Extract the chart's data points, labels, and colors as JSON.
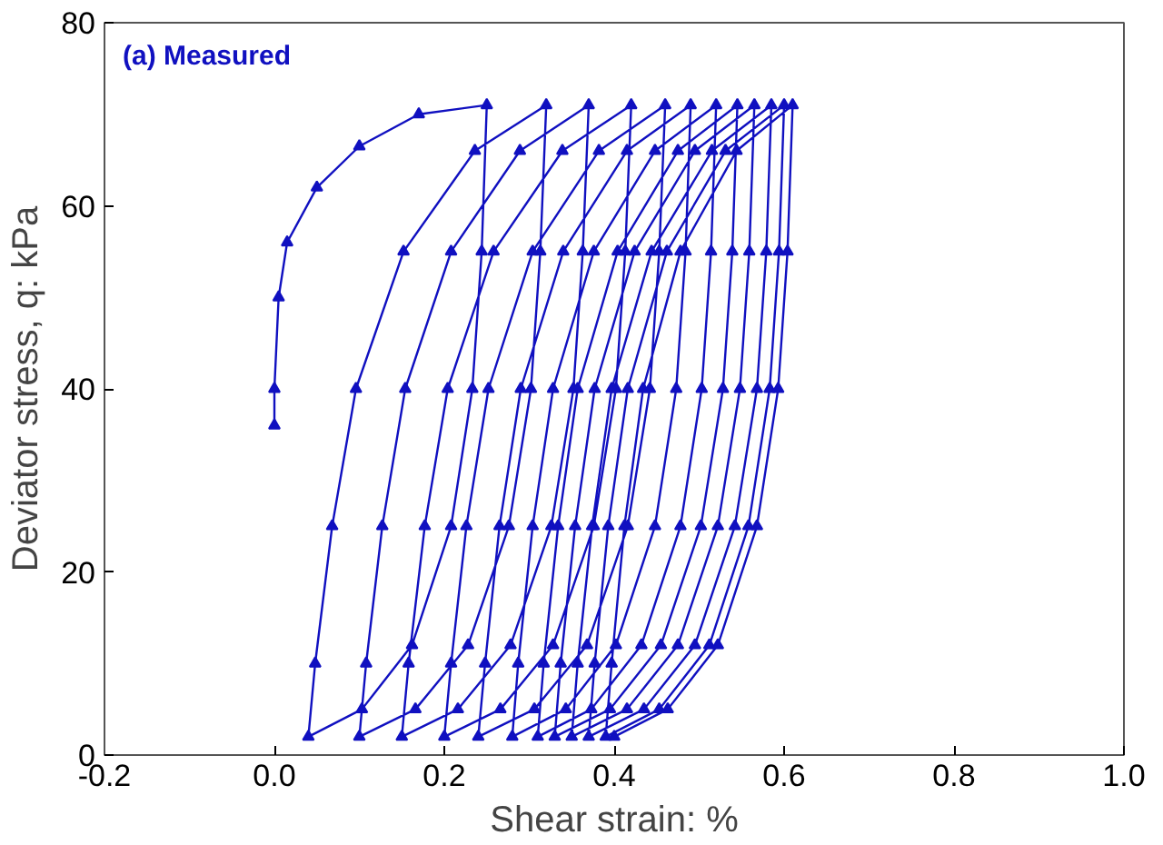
{
  "chart_data": {
    "type": "line",
    "xlabel": "Shear strain: %",
    "ylabel": "Deviator stress, q: kPa",
    "annotations": [
      "(a) Measured"
    ],
    "xlim": [
      -0.2,
      1.0
    ],
    "xticks": [
      -0.2,
      {
        "value": 0,
        "label": "0.0"
      },
      0.2,
      0.4,
      0.6,
      0.8,
      {
        "value": 1,
        "label": "1.0"
      }
    ],
    "ylim": [
      0,
      80
    ],
    "yticks": [
      0,
      20,
      40,
      60,
      80
    ],
    "grid": false,
    "marker": "triangle",
    "line_style": "solid",
    "series": [
      {
        "color": "#1010c0",
        "x": [
          0,
          0,
          0.005,
          0.015,
          0.05,
          0.1,
          0.17,
          0.25,
          0.244,
          0.233,
          0.208,
          0.162,
          0.103,
          0.04,
          0.048,
          0.068,
          0.096,
          0.152,
          0.236,
          0.32,
          0.313,
          0.302,
          0.276,
          0.228,
          0.166,
          0.1,
          0.108,
          0.127,
          0.154,
          0.208,
          0.289,
          0.37,
          0.363,
          0.352,
          0.326,
          0.278,
          0.216,
          0.15,
          0.158,
          0.177,
          0.204,
          0.258,
          0.339,
          0.42,
          0.413,
          0.402,
          0.376,
          0.328,
          0.266,
          0.2,
          0.208,
          0.226,
          0.252,
          0.304,
          0.382,
          0.46,
          0.453,
          0.442,
          0.416,
          0.368,
          0.306,
          0.24,
          0.248,
          0.265,
          0.29,
          0.34,
          0.415,
          0.49,
          0.484,
          0.473,
          0.448,
          0.402,
          0.343,
          0.28,
          0.287,
          0.304,
          0.328,
          0.376,
          0.448,
          0.52,
          0.514,
          0.503,
          0.478,
          0.432,
          0.373,
          0.31,
          0.317,
          0.334,
          0.357,
          0.404,
          0.475,
          0.545,
          0.539,
          0.528,
          0.502,
          0.455,
          0.395,
          0.33,
          0.337,
          0.354,
          0.377,
          0.424,
          0.495,
          0.565,
          0.559,
          0.548,
          0.522,
          0.475,
          0.415,
          0.35,
          0.357,
          0.374,
          0.397,
          0.444,
          0.515,
          0.585,
          0.579,
          0.568,
          0.542,
          0.495,
          0.435,
          0.37,
          0.377,
          0.393,
          0.416,
          0.462,
          0.531,
          0.6,
          0.594,
          0.583,
          0.558,
          0.512,
          0.453,
          0.39,
          0.397,
          0.412,
          0.434,
          0.478,
          0.544,
          0.61,
          0.604,
          0.593,
          0.568,
          0.522,
          0.463,
          0.4
        ],
        "values": [
          36,
          40,
          50,
          56,
          62,
          66.5,
          70,
          71,
          55,
          40,
          25,
          12,
          5,
          2,
          10,
          25,
          40,
          55,
          66,
          71,
          55,
          40,
          25,
          12,
          5,
          2,
          10,
          25,
          40,
          55,
          66,
          71,
          55,
          40,
          25,
          12,
          5,
          2,
          10,
          25,
          40,
          55,
          66,
          71,
          55,
          40,
          25,
          12,
          5,
          2,
          10,
          25,
          40,
          55,
          66,
          71,
          55,
          40,
          25,
          12,
          5,
          2,
          10,
          25,
          40,
          55,
          66,
          71,
          55,
          40,
          25,
          12,
          5,
          2,
          10,
          25,
          40,
          55,
          66,
          71,
          55,
          40,
          25,
          12,
          5,
          2,
          10,
          25,
          40,
          55,
          66,
          71,
          55,
          40,
          25,
          12,
          5,
          2,
          10,
          25,
          40,
          55,
          66,
          71,
          55,
          40,
          25,
          12,
          5,
          2,
          10,
          25,
          40,
          55,
          66,
          71,
          55,
          40,
          25,
          12,
          5,
          2,
          10,
          25,
          40,
          55,
          66,
          71,
          55,
          40,
          25,
          12,
          5,
          2,
          10,
          25,
          40,
          55,
          66,
          71,
          55,
          40,
          25,
          12,
          5,
          2
        ]
      }
    ]
  }
}
